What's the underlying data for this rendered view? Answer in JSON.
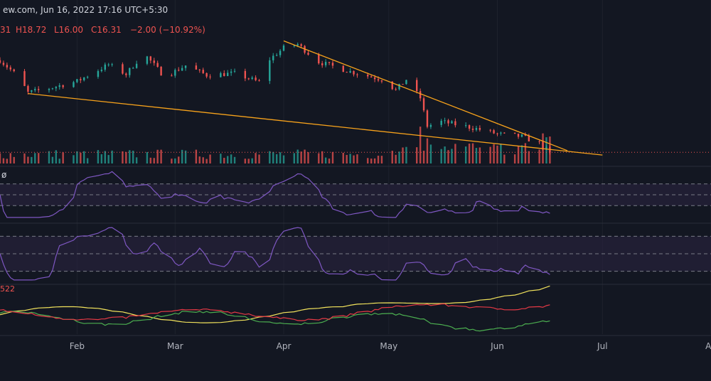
{
  "header": {
    "source": "ew.com, Jun 16, 2022 17:16 UTC+5:30",
    "ohlc": {
      "open_frag": "31",
      "high_label": "H18.72",
      "low_label": "L16.00",
      "close_label": "C16.31",
      "change_label": "−2.00 (−10.92%)"
    }
  },
  "panes": {
    "rsi_label": "ø",
    "adx_label": "522"
  },
  "colors": {
    "background": "#131722",
    "up": "#26a69a",
    "down": "#ef5350",
    "trendline": "#f7a21b",
    "oscillator": "#7e57c2",
    "band": "#2a2340",
    "adx": "#f2e35c",
    "di_plus": "#4caf50",
    "di_minus": "#e53945",
    "axis_text": "#b2b5be"
  },
  "chart_data": {
    "type": "candlestick",
    "x_axis": {
      "ticks": [
        "Feb",
        "Mar",
        "Apr",
        "May",
        "Jun",
        "Jul",
        "Au"
      ],
      "range": [
        "2022-01-10",
        "2022-08-01"
      ]
    },
    "price_ylim": [
      15.2,
      29.2
    ],
    "price_anchors": [
      {
        "date": "2022-01-10",
        "close": 26.8
      },
      {
        "date": "2022-01-15",
        "close": 25.0
      },
      {
        "date": "2022-01-18",
        "close": 23.1
      },
      {
        "date": "2022-01-24",
        "close": 23.6
      },
      {
        "date": "2022-02-01",
        "close": 24.4
      },
      {
        "date": "2022-02-10",
        "close": 26.3
      },
      {
        "date": "2022-02-15",
        "close": 25.2
      },
      {
        "date": "2022-02-20",
        "close": 27.6
      },
      {
        "date": "2022-02-26",
        "close": 24.9
      },
      {
        "date": "2022-03-04",
        "close": 26.2
      },
      {
        "date": "2022-03-10",
        "close": 25.1
      },
      {
        "date": "2022-03-18",
        "close": 25.3
      },
      {
        "date": "2022-03-25",
        "close": 24.3
      },
      {
        "date": "2022-03-28",
        "close": 26.9
      },
      {
        "date": "2022-04-01",
        "close": 28.2
      },
      {
        "date": "2022-04-05",
        "close": 28.6
      },
      {
        "date": "2022-04-11",
        "close": 26.6
      },
      {
        "date": "2022-04-20",
        "close": 25.5
      },
      {
        "date": "2022-04-29",
        "close": 24.6
      },
      {
        "date": "2022-05-03",
        "close": 23.4
      },
      {
        "date": "2022-05-06",
        "close": 24.6
      },
      {
        "date": "2022-05-10",
        "close": 22.5
      },
      {
        "date": "2022-05-12",
        "close": 19.3
      },
      {
        "date": "2022-05-16",
        "close": 19.8
      },
      {
        "date": "2022-05-25",
        "close": 19.1
      },
      {
        "date": "2022-06-01",
        "close": 18.4
      },
      {
        "date": "2022-06-08",
        "close": 18.1
      },
      {
        "date": "2022-06-13",
        "close": 17.3
      },
      {
        "date": "2022-06-16",
        "close": 16.31
      }
    ],
    "trendlines": [
      {
        "name": "upper",
        "from": {
          "date": "2022-04-01",
          "price": 29.0
        },
        "to": {
          "date": "2022-06-21",
          "price": 16.5
        }
      },
      {
        "name": "lower",
        "from": {
          "date": "2022-01-18",
          "price": 23.0
        },
        "to": {
          "date": "2022-07-01",
          "price": 16.0
        }
      }
    ],
    "last_price": 16.31,
    "volume_spikes": [
      {
        "date": "2022-05-10"
      },
      {
        "date": "2022-05-12"
      },
      {
        "date": "2022-06-14"
      },
      {
        "date": "2022-06-15"
      },
      {
        "date": "2022-06-16"
      }
    ],
    "indicators": [
      {
        "pane": "rsi",
        "levels": [
          70,
          50,
          30
        ]
      },
      {
        "pane": "stoch",
        "levels": [
          80,
          50,
          20
        ]
      },
      {
        "pane": "adx",
        "lines": [
          "adx",
          "di_plus",
          "di_minus"
        ]
      }
    ]
  }
}
